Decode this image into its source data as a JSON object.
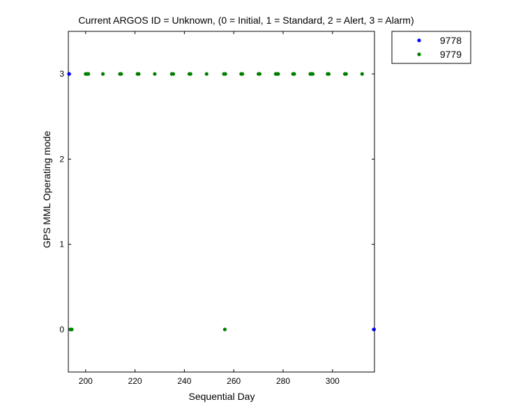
{
  "chart_data": {
    "type": "scatter",
    "title": "Current ARGOS ID = Unknown, (0 = Initial, 1 = Standard, 2 = Alert, 3 = Alarm)",
    "xlabel": "Sequential Day",
    "ylabel": "GPS MML Operating mode",
    "xlim": [
      193,
      317
    ],
    "ylim": [
      -0.5,
      3.5
    ],
    "xticks": [
      200,
      220,
      240,
      260,
      280,
      300
    ],
    "yticks": [
      0,
      1,
      2,
      3
    ],
    "grid": false,
    "legend_position": "outside-top-right",
    "series": [
      {
        "name": "9778",
        "color": "#0000ff",
        "points": [
          [
            193.3,
            3
          ],
          [
            316.8,
            0
          ]
        ]
      },
      {
        "name": "9779",
        "color": "#007f00",
        "points": [
          [
            193.8,
            0
          ],
          [
            194.4,
            0
          ],
          [
            256.4,
            0
          ],
          [
            200.0,
            3
          ],
          [
            200.6,
            3
          ],
          [
            201.1,
            3
          ],
          [
            207.0,
            3
          ],
          [
            213.9,
            3
          ],
          [
            214.4,
            3
          ],
          [
            221.0,
            3
          ],
          [
            221.5,
            3
          ],
          [
            228.0,
            3
          ],
          [
            234.9,
            3
          ],
          [
            235.5,
            3
          ],
          [
            242.0,
            3
          ],
          [
            242.5,
            3
          ],
          [
            249.0,
            3
          ],
          [
            256.0,
            3
          ],
          [
            256.6,
            3
          ],
          [
            263.0,
            3
          ],
          [
            263.5,
            3
          ],
          [
            270.0,
            3
          ],
          [
            270.5,
            3
          ],
          [
            277.0,
            3
          ],
          [
            277.5,
            3
          ],
          [
            278.0,
            3
          ],
          [
            284.0,
            3
          ],
          [
            284.5,
            3
          ],
          [
            291.0,
            3
          ],
          [
            291.5,
            3
          ],
          [
            292.0,
            3
          ],
          [
            298.0,
            3
          ],
          [
            298.5,
            3
          ],
          [
            305.0,
            3
          ],
          [
            305.5,
            3
          ],
          [
            312.0,
            3
          ]
        ]
      }
    ]
  }
}
